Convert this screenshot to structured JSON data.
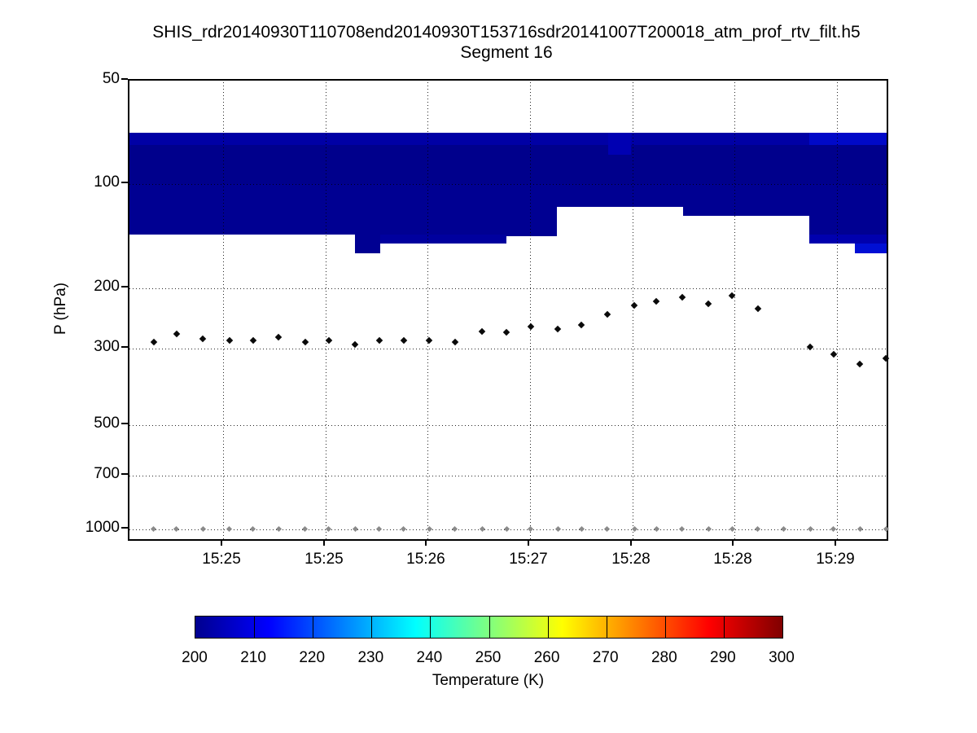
{
  "figure": {
    "title": "SHIS_rdr20140930T110708end20140930T153716sdr20141007T200018_atm_prof_rtv_filt.h5",
    "subtitle": "Segment 16"
  },
  "chart_data": {
    "type": "heatmap",
    "title": "SHIS_rdr20140930T110708end20140930T153716sdr20141007T200018_atm_prof_rtv_filt.h5",
    "subtitle": "Segment 16",
    "xlabel": "",
    "ylabel": "P (hPa)",
    "y_scale": "log",
    "y_axis_reversed_pressure": true,
    "ylim": [
      50,
      1068
    ],
    "y_ticks": [
      50,
      100,
      200,
      300,
      500,
      700,
      1000
    ],
    "x_ticks": [
      {
        "pos": 0.1237,
        "label": "15:25"
      },
      {
        "pos": 0.2591,
        "label": "15:25"
      },
      {
        "pos": 0.3935,
        "label": "15:26"
      },
      {
        "pos": 0.529,
        "label": "15:27"
      },
      {
        "pos": 0.6645,
        "label": "15:28"
      },
      {
        "pos": 0.7989,
        "label": "15:28"
      },
      {
        "pos": 0.9344,
        "label": "15:29"
      }
    ],
    "grid": true,
    "grid_style": "dotted",
    "heat_rects": [
      {
        "x0": 0.0,
        "x1": 1.0,
        "p0": 71,
        "p1": 77,
        "color": "#0000A5"
      },
      {
        "x0": 0.898,
        "x1": 1.0,
        "p0": 71,
        "p1": 77,
        "color": "#0009C8"
      },
      {
        "x0": 0.0,
        "x1": 1.0,
        "p0": 77,
        "p1": 100,
        "color": "#00008C"
      },
      {
        "x0": 0.632,
        "x1": 0.662,
        "p0": 71,
        "p1": 82,
        "color": "#0000B2"
      },
      {
        "x0": 0.0,
        "x1": 0.498,
        "p0": 100,
        "p1": 140,
        "color": "#000092"
      },
      {
        "x0": 0.298,
        "x1": 0.331,
        "p0": 140,
        "p1": 158,
        "color": "#000092"
      },
      {
        "x0": 0.331,
        "x1": 0.498,
        "p0": 140,
        "p1": 148,
        "color": "#00009E"
      },
      {
        "x0": 0.498,
        "x1": 0.565,
        "p0": 100,
        "p1": 141,
        "color": "#000092"
      },
      {
        "x0": 0.565,
        "x1": 0.731,
        "p0": 100,
        "p1": 116,
        "color": "#000092"
      },
      {
        "x0": 0.731,
        "x1": 0.898,
        "p0": 100,
        "p1": 123,
        "color": "#000092"
      },
      {
        "x0": 0.898,
        "x1": 1.0,
        "p0": 100,
        "p1": 140,
        "color": "#000092"
      },
      {
        "x0": 0.898,
        "x1": 1.0,
        "p0": 140,
        "p1": 148,
        "color": "#0000AE"
      },
      {
        "x0": 0.958,
        "x1": 1.0,
        "p0": 148,
        "p1": 158,
        "color": "#000FD4"
      }
    ],
    "retrieval_dots": {
      "marker": "diamond",
      "color": "#0a0a0a",
      "points": [
        {
          "x": 0.032,
          "p": 286
        },
        {
          "x": 0.062,
          "p": 271
        },
        {
          "x": 0.097,
          "p": 280
        },
        {
          "x": 0.132,
          "p": 283
        },
        {
          "x": 0.163,
          "p": 283
        },
        {
          "x": 0.197,
          "p": 278
        },
        {
          "x": 0.232,
          "p": 286
        },
        {
          "x": 0.263,
          "p": 284
        },
        {
          "x": 0.298,
          "p": 291
        },
        {
          "x": 0.33,
          "p": 284
        },
        {
          "x": 0.362,
          "p": 284
        },
        {
          "x": 0.396,
          "p": 283
        },
        {
          "x": 0.43,
          "p": 286
        },
        {
          "x": 0.466,
          "p": 267
        },
        {
          "x": 0.498,
          "p": 268
        },
        {
          "x": 0.53,
          "p": 258
        },
        {
          "x": 0.566,
          "p": 262
        },
        {
          "x": 0.597,
          "p": 255
        },
        {
          "x": 0.631,
          "p": 238
        },
        {
          "x": 0.667,
          "p": 224
        },
        {
          "x": 0.696,
          "p": 218
        },
        {
          "x": 0.73,
          "p": 212
        },
        {
          "x": 0.765,
          "p": 222
        },
        {
          "x": 0.796,
          "p": 210
        },
        {
          "x": 0.83,
          "p": 229
        },
        {
          "x": 0.899,
          "p": 296
        },
        {
          "x": 0.93,
          "p": 310
        },
        {
          "x": 0.965,
          "p": 332
        },
        {
          "x": 0.999,
          "p": 319
        }
      ]
    },
    "surface_dots": {
      "marker": "diamond",
      "color": "#8a8a8a",
      "p": 1000,
      "x": [
        0.032,
        0.062,
        0.097,
        0.132,
        0.163,
        0.197,
        0.232,
        0.263,
        0.298,
        0.33,
        0.362,
        0.396,
        0.43,
        0.466,
        0.498,
        0.53,
        0.566,
        0.597,
        0.631,
        0.667,
        0.696,
        0.73,
        0.765,
        0.796,
        0.83,
        0.864,
        0.899,
        0.93,
        0.965,
        0.999
      ]
    },
    "colorbar": {
      "label": "Temperature (K)",
      "min": 200,
      "max": 300,
      "ticks": [
        200,
        210,
        220,
        230,
        240,
        250,
        260,
        270,
        280,
        290,
        300
      ],
      "colormap": "jet",
      "colormap_stops": [
        {
          "pos": 0.0,
          "color": "#00008F"
        },
        {
          "pos": 0.125,
          "color": "#0000FF"
        },
        {
          "pos": 0.375,
          "color": "#00FFFF"
        },
        {
          "pos": 0.625,
          "color": "#FFFF00"
        },
        {
          "pos": 0.875,
          "color": "#FF0000"
        },
        {
          "pos": 1.0,
          "color": "#800000"
        }
      ]
    }
  }
}
